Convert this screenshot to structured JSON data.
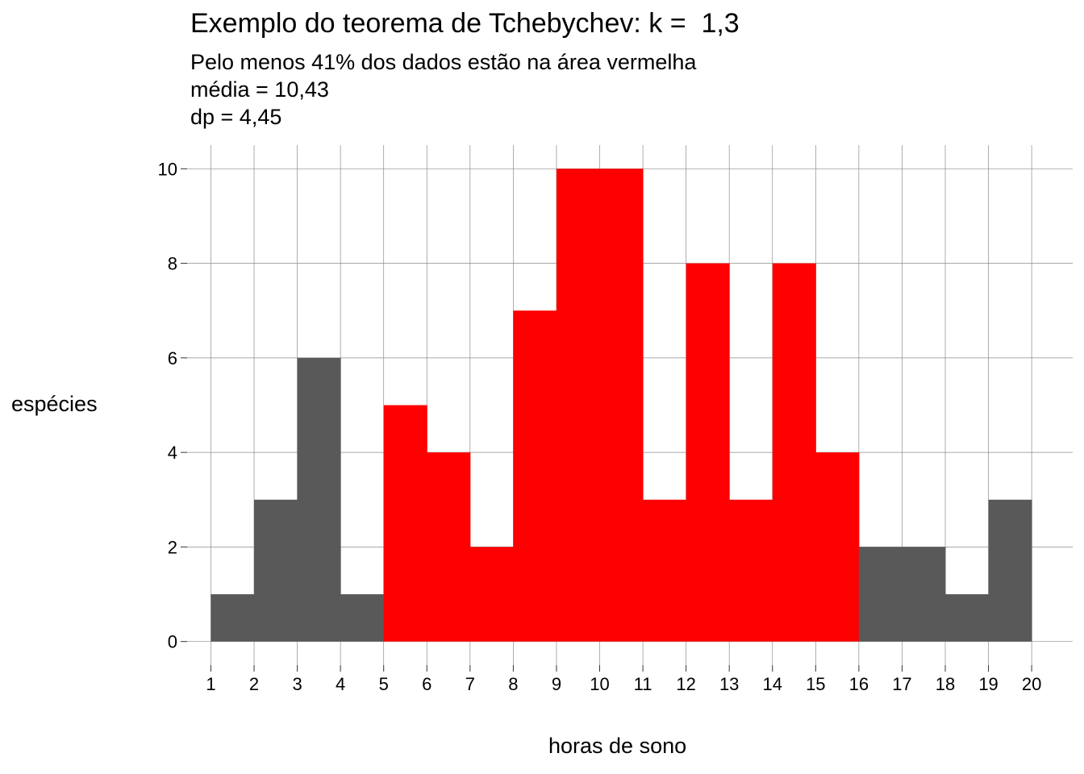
{
  "chart_data": {
    "type": "bar",
    "title": "Exemplo do teorema de Tchebychev: k =  1,3",
    "subtitle_lines": [
      "Pelo menos 41% dos dados estão na área vermelha",
      "média = 10,43",
      "dp = 4,45"
    ],
    "xlabel": "horas de sono",
    "ylabel": "espécies",
    "bins": [
      {
        "start": 1,
        "end": 2,
        "value": 1,
        "highlight": false
      },
      {
        "start": 2,
        "end": 3,
        "value": 3,
        "highlight": false
      },
      {
        "start": 3,
        "end": 4,
        "value": 6,
        "highlight": false
      },
      {
        "start": 4,
        "end": 5,
        "value": 1,
        "highlight": false
      },
      {
        "start": 5,
        "end": 6,
        "value": 5,
        "highlight": true
      },
      {
        "start": 6,
        "end": 7,
        "value": 4,
        "highlight": true
      },
      {
        "start": 7,
        "end": 8,
        "value": 2,
        "highlight": true
      },
      {
        "start": 8,
        "end": 9,
        "value": 7,
        "highlight": true
      },
      {
        "start": 9,
        "end": 10,
        "value": 10,
        "highlight": true
      },
      {
        "start": 10,
        "end": 11,
        "value": 10,
        "highlight": true
      },
      {
        "start": 11,
        "end": 12,
        "value": 3,
        "highlight": true
      },
      {
        "start": 12,
        "end": 13,
        "value": 8,
        "highlight": true
      },
      {
        "start": 13,
        "end": 14,
        "value": 3,
        "highlight": true
      },
      {
        "start": 14,
        "end": 15,
        "value": 8,
        "highlight": true
      },
      {
        "start": 15,
        "end": 16,
        "value": 4,
        "highlight": true
      },
      {
        "start": 16,
        "end": 17,
        "value": 2,
        "highlight": false
      },
      {
        "start": 17,
        "end": 18,
        "value": 2,
        "highlight": false
      },
      {
        "start": 18,
        "end": 19,
        "value": 1,
        "highlight": false
      },
      {
        "start": 19,
        "end": 20,
        "value": 3,
        "highlight": false
      }
    ],
    "x_ticks": [
      "1",
      "2",
      "3",
      "4",
      "5",
      "6",
      "7",
      "8",
      "9",
      "10",
      "11",
      "12",
      "13",
      "14",
      "15",
      "16",
      "17",
      "18",
      "19",
      "20"
    ],
    "y_ticks": [
      "0",
      "2",
      "4",
      "6",
      "8",
      "10"
    ],
    "xlim": [
      0.45,
      20.95
    ],
    "ylim": [
      -0.5,
      10.5
    ],
    "grid": true,
    "colors": {
      "highlight": "#FF0000",
      "normal": "#595959",
      "grid": "#8c8c8c"
    }
  }
}
